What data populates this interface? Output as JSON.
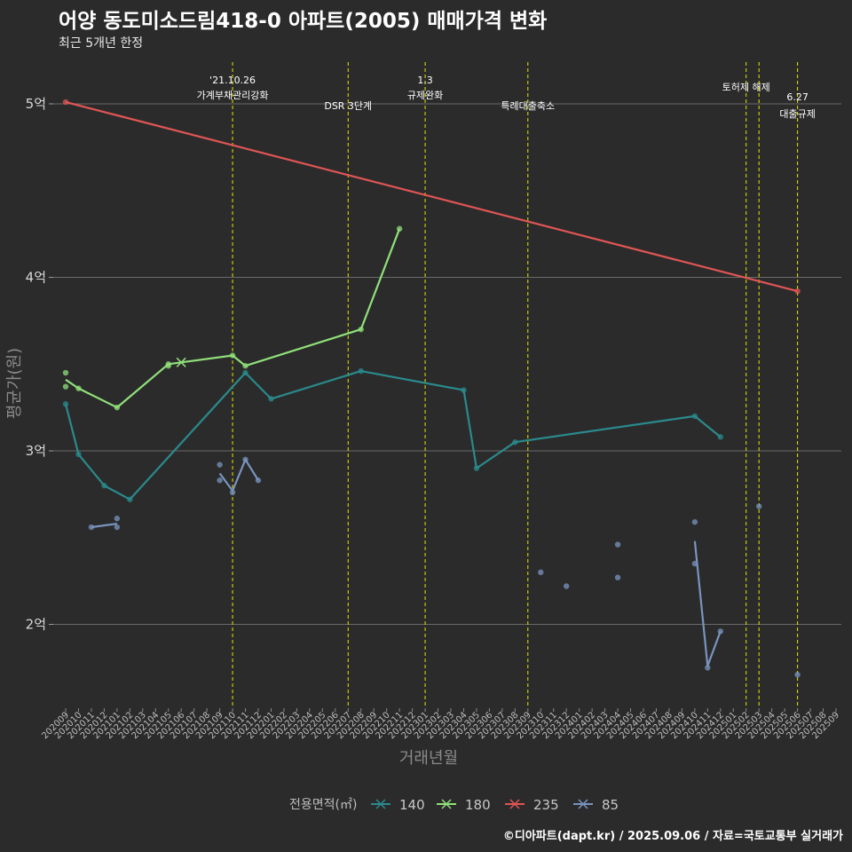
{
  "header": {
    "title": "어양 동도미소드림418-0 아파트(2005) 매매가격 변화",
    "subtitle": "최근 5개년 한정"
  },
  "footer": {
    "credit": "©디아파트(dapt.kr) / 2025.09.06 / 자료=국토교통부 실거래가"
  },
  "chart_data": {
    "type": "line",
    "title": "어양 동도미소드림418-0 아파트(2005) 매매가격 변화",
    "subtitle": "최근 5개년 한정",
    "xlabel": "거래년월",
    "ylabel": "평균가(원)",
    "ylim": [
      1.55,
      5.25
    ],
    "y_ticks": [
      {
        "value": 2,
        "label": "2억"
      },
      {
        "value": 3,
        "label": "3억"
      },
      {
        "value": 4,
        "label": "4억"
      },
      {
        "value": 5,
        "label": "5억"
      }
    ],
    "x_ticks": [
      "202009",
      "202010",
      "202011",
      "202012",
      "202101",
      "202102",
      "202103",
      "202104",
      "202105",
      "202106",
      "202107",
      "202108",
      "202109",
      "202110",
      "202111",
      "202112",
      "202201",
      "202202",
      "202203",
      "202204",
      "202205",
      "202206",
      "202207",
      "202208",
      "202209",
      "202210",
      "202211",
      "202212",
      "202301",
      "202302",
      "202303",
      "202304",
      "202305",
      "202306",
      "202307",
      "202308",
      "202309",
      "202310",
      "202311",
      "202312",
      "202401",
      "202402",
      "202403",
      "202404",
      "202405",
      "202406",
      "202407",
      "202408",
      "202409",
      "202410",
      "202411",
      "202412",
      "202501",
      "202502",
      "202503",
      "202504",
      "202505",
      "202506",
      "202507",
      "202508",
      "202509"
    ],
    "events": [
      {
        "month": "202110",
        "label": "'21.10.26\n가계부채관리강화"
      },
      {
        "month": "202207",
        "label": "DSR 3단계"
      },
      {
        "month": "202301",
        "label": "1.3\n규제완화"
      },
      {
        "month": "202309",
        "label": "특례대출축소"
      },
      {
        "month": "202502",
        "label": "토허제 해제"
      },
      {
        "month": "202503",
        "label": ""
      },
      {
        "month": "202506",
        "label": "6.27\n대출규제"
      }
    ],
    "legend_title": "전용면적(㎡)",
    "series": [
      {
        "name": "140",
        "color": "#2a8a8c",
        "marker": "×",
        "line": [
          [
            "202009",
            3.27
          ],
          [
            "202010",
            2.98
          ],
          [
            "202012",
            2.8
          ],
          [
            "202102",
            2.72
          ],
          [
            "202111",
            3.45
          ],
          [
            "202201",
            3.3
          ],
          [
            "202208",
            3.46
          ],
          [
            "202304",
            3.35
          ],
          [
            "202305",
            2.9
          ],
          [
            "202308",
            3.05
          ],
          [
            "202410",
            3.2
          ],
          [
            "202412",
            3.08
          ]
        ],
        "points": [
          [
            "202009",
            3.27
          ],
          [
            "202010",
            2.98
          ],
          [
            "202012",
            2.8
          ],
          [
            "202102",
            2.72
          ],
          [
            "202111",
            3.45
          ],
          [
            "202201",
            3.3
          ],
          [
            "202208",
            3.46
          ],
          [
            "202304",
            3.35
          ],
          [
            "202305",
            2.9
          ],
          [
            "202308",
            3.05
          ],
          [
            "202410",
            3.2
          ],
          [
            "202412",
            3.08
          ]
        ]
      },
      {
        "name": "180",
        "color": "#90e07a",
        "marker": "×",
        "line": [
          [
            "202009",
            3.41
          ],
          [
            "202010",
            3.36
          ],
          [
            "202101",
            3.25
          ],
          [
            "202105",
            3.5
          ],
          [
            "202106",
            3.51
          ],
          [
            "202110",
            3.55
          ],
          [
            "202111",
            3.49
          ],
          [
            "202208",
            3.7
          ],
          [
            "202211",
            4.28
          ]
        ],
        "points": [
          [
            "202009",
            3.45
          ],
          [
            "202009",
            3.37
          ],
          [
            "202010",
            3.36
          ],
          [
            "202101",
            3.25
          ],
          [
            "202105",
            3.5
          ],
          [
            "202105",
            3.49
          ],
          [
            "202110",
            3.55
          ],
          [
            "202111",
            3.49
          ],
          [
            "202208",
            3.7
          ],
          [
            "202211",
            4.28
          ]
        ]
      },
      {
        "name": "235",
        "color": "#e05555",
        "marker": "×",
        "line": [
          [
            "202009",
            5.01
          ],
          [
            "202506",
            3.92
          ]
        ],
        "points": [
          [
            "202009",
            5.01
          ],
          [
            "202506",
            3.92
          ]
        ]
      },
      {
        "name": "85",
        "color": "#7a94c0",
        "marker": "×",
        "line": [
          [
            "202011",
            2.56
          ],
          [
            "202101",
            2.58
          ]
        ],
        "line2": [
          [
            "202109",
            2.87
          ],
          [
            "202110",
            2.77
          ],
          [
            "202111",
            2.95
          ],
          [
            "202112",
            2.83
          ]
        ],
        "line3": [
          [
            "202410",
            2.48
          ],
          [
            "202411",
            1.76
          ],
          [
            "202412",
            1.96
          ]
        ],
        "points": [
          [
            "202011",
            2.56
          ],
          [
            "202101",
            2.61
          ],
          [
            "202101",
            2.56
          ],
          [
            "202109",
            2.92
          ],
          [
            "202109",
            2.83
          ],
          [
            "202110",
            2.76
          ],
          [
            "202111",
            2.95
          ],
          [
            "202112",
            2.83
          ],
          [
            "202310",
            2.3
          ],
          [
            "202312",
            2.22
          ],
          [
            "202404",
            2.46
          ],
          [
            "202404",
            2.27
          ],
          [
            "202410",
            2.59
          ],
          [
            "202410",
            2.35
          ],
          [
            "202411",
            1.75
          ],
          [
            "202412",
            1.96
          ],
          [
            "202503",
            2.68
          ],
          [
            "202506",
            1.71
          ]
        ]
      }
    ]
  }
}
